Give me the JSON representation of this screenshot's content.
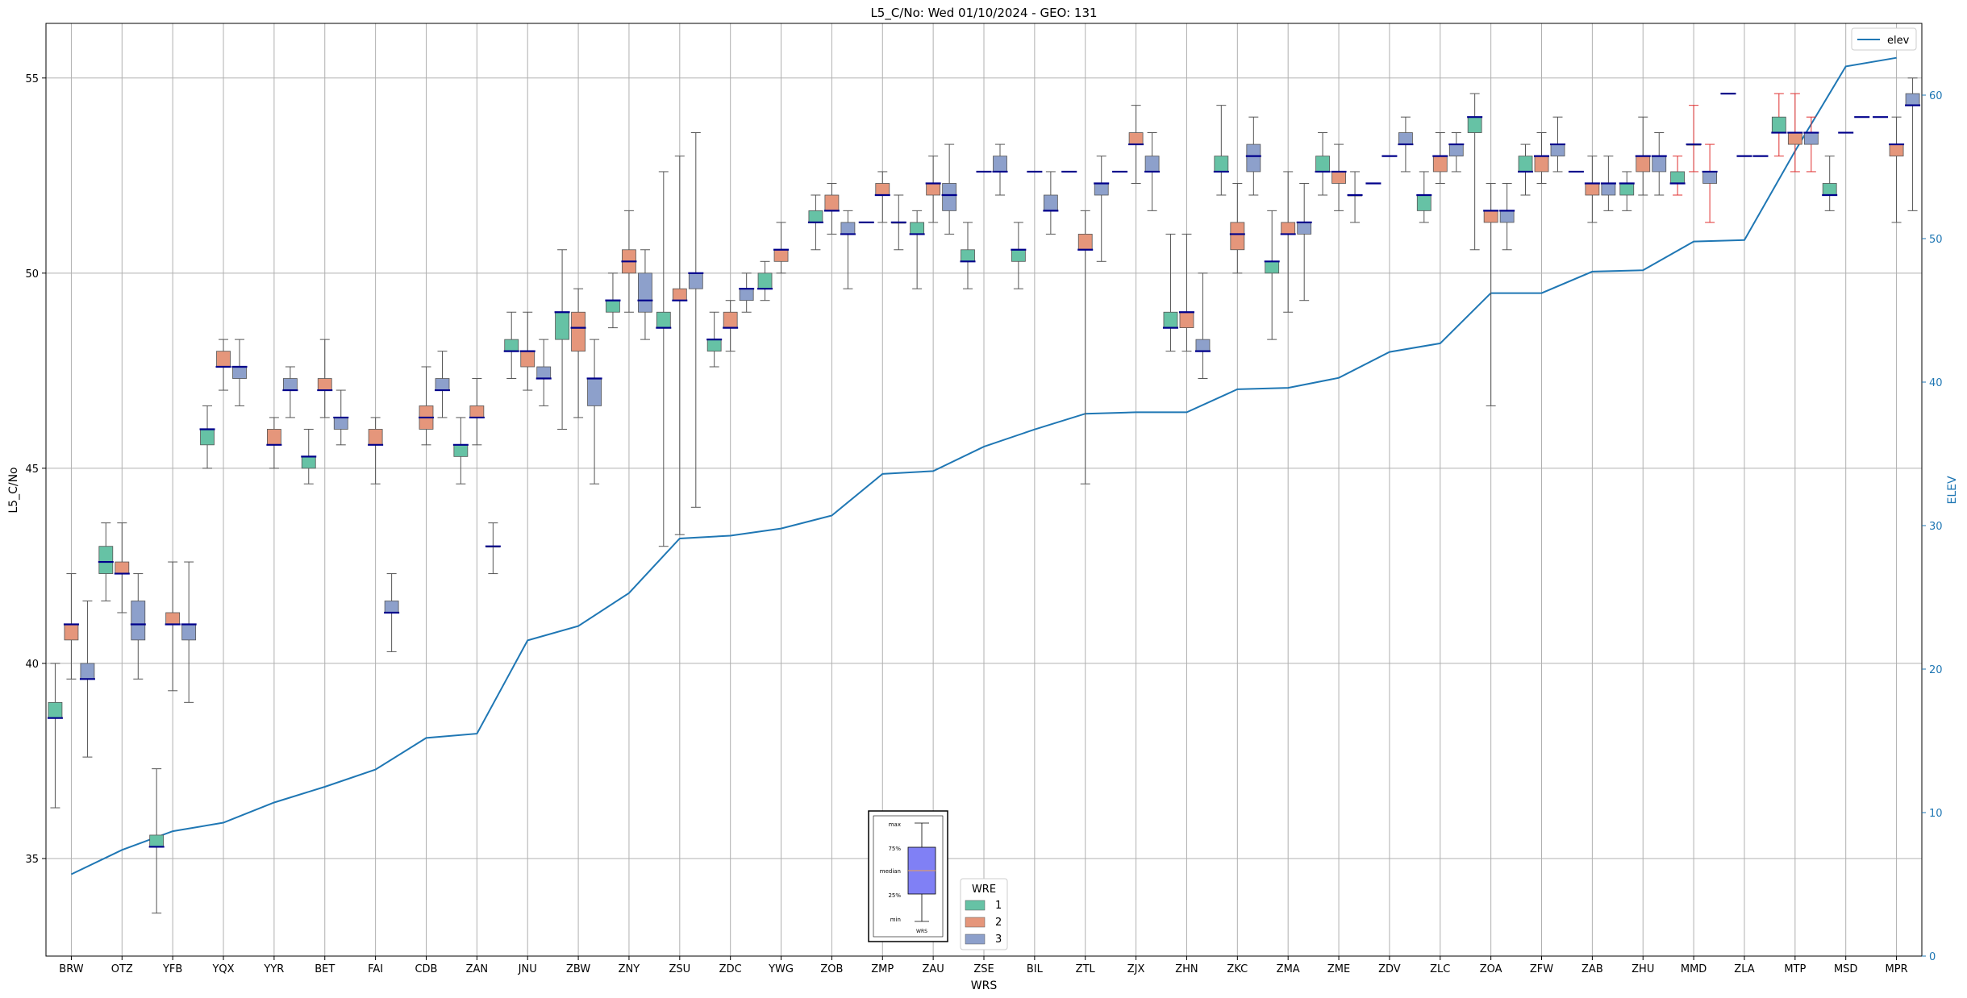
{
  "chart_data": {
    "type": "box",
    "title": "L5_C/No: Wed 01/10/2024 - GEO: 131",
    "xlabel": "WRS",
    "ylabel": "L5_C/No",
    "y2label": "ELEV",
    "ylim": [
      32.5,
      56.4
    ],
    "y2lim": [
      0,
      65
    ],
    "yticks": [
      35,
      40,
      45,
      50,
      55
    ],
    "y2ticks": [
      0,
      10,
      20,
      30,
      40,
      50,
      60
    ],
    "grid": true,
    "categories": [
      "BRW",
      "OTZ",
      "YFB",
      "YQX",
      "YYR",
      "BET",
      "FAI",
      "CDB",
      "ZAN",
      "JNU",
      "ZBW",
      "ZNY",
      "ZSU",
      "ZDC",
      "YWG",
      "ZOB",
      "ZMP",
      "ZAU",
      "ZSE",
      "BIL",
      "ZTL",
      "ZJX",
      "ZHN",
      "ZKC",
      "ZMA",
      "ZME",
      "ZDV",
      "ZLC",
      "ZOA",
      "ZFW",
      "ZAB",
      "ZHU",
      "MMD",
      "ZLA",
      "MTP",
      "MSD",
      "MPR"
    ],
    "series": [
      {
        "name": "1",
        "color": "#66c2a5",
        "boxes": [
          {
            "cat": "BRW",
            "min": 36.3,
            "q1": 38.6,
            "median": 38.6,
            "q3": 39.0,
            "max": 40.0
          },
          {
            "cat": "OTZ",
            "min": 41.6,
            "q1": 42.3,
            "median": 42.6,
            "q3": 43.0,
            "max": 43.6
          },
          {
            "cat": "YFB",
            "min": 33.6,
            "q1": 35.3,
            "median": 35.3,
            "q3": 35.6,
            "max": 37.3
          },
          {
            "cat": "YQX",
            "min": 45.0,
            "q1": 45.6,
            "median": 46.0,
            "q3": 46.0,
            "max": 46.6
          },
          {
            "cat": "BET",
            "min": 44.6,
            "q1": 45.0,
            "median": 45.3,
            "q3": 45.3,
            "max": 46.0
          },
          {
            "cat": "ZAN",
            "min": 44.6,
            "q1": 45.3,
            "median": 45.6,
            "q3": 45.6,
            "max": 46.3
          },
          {
            "cat": "JNU",
            "min": 47.3,
            "q1": 48.0,
            "median": 48.0,
            "q3": 48.3,
            "max": 49.0
          },
          {
            "cat": "ZBW",
            "min": 46.0,
            "q1": 48.3,
            "median": 49.0,
            "q3": 49.0,
            "max": 50.6
          },
          {
            "cat": "ZNY",
            "min": 48.6,
            "q1": 49.0,
            "median": 49.3,
            "q3": 49.3,
            "max": 50.0
          },
          {
            "cat": "ZSU",
            "min": 43.0,
            "q1": 48.6,
            "median": 48.6,
            "q3": 49.0,
            "max": 52.6
          },
          {
            "cat": "ZDC",
            "min": 47.6,
            "q1": 48.0,
            "median": 48.3,
            "q3": 48.3,
            "max": 49.0
          },
          {
            "cat": "YWG",
            "min": 49.3,
            "q1": 49.6,
            "median": 49.6,
            "q3": 50.0,
            "max": 50.3
          },
          {
            "cat": "ZOB",
            "min": 50.6,
            "q1": 51.3,
            "median": 51.3,
            "q3": 51.6,
            "max": 52.0
          },
          {
            "cat": "ZAU",
            "min": 49.6,
            "q1": 51.0,
            "median": 51.0,
            "q3": 51.3,
            "max": 51.6
          },
          {
            "cat": "ZSE",
            "min": 49.6,
            "q1": 50.3,
            "median": 50.3,
            "q3": 50.6,
            "max": 51.3
          },
          {
            "cat": "BIL",
            "min": 49.6,
            "q1": 50.3,
            "median": 50.6,
            "q3": 50.6,
            "max": 51.3
          },
          {
            "cat": "ZHN",
            "min": 48.0,
            "q1": 48.6,
            "median": 48.6,
            "q3": 49.0,
            "max": 51.0
          },
          {
            "cat": "ZKC",
            "min": 52.0,
            "q1": 52.6,
            "median": 52.6,
            "q3": 53.0,
            "max": 54.3
          },
          {
            "cat": "ZMA",
            "min": 48.3,
            "q1": 50.0,
            "median": 50.3,
            "q3": 50.3,
            "max": 51.6
          },
          {
            "cat": "ZME",
            "min": 52.0,
            "q1": 52.6,
            "median": 52.6,
            "q3": 53.0,
            "max": 53.6
          },
          {
            "cat": "ZLC",
            "min": 51.3,
            "q1": 51.6,
            "median": 52.0,
            "q3": 52.0,
            "max": 52.6
          },
          {
            "cat": "ZOA",
            "min": 50.6,
            "q1": 53.6,
            "median": 54.0,
            "q3": 54.0,
            "max": 54.6
          },
          {
            "cat": "ZFW",
            "min": 52.0,
            "q1": 52.6,
            "median": 52.6,
            "q3": 53.0,
            "max": 53.3
          },
          {
            "cat": "ZHU",
            "min": 51.6,
            "q1": 52.0,
            "median": 52.3,
            "q3": 52.3,
            "max": 52.6
          },
          {
            "cat": "MMD",
            "min": 52.0,
            "q1": 52.3,
            "median": 52.3,
            "q3": 52.6,
            "max": 53.0
          },
          {
            "cat": "MTP",
            "min": 53.0,
            "q1": 53.6,
            "median": 53.6,
            "q3": 54.0,
            "max": 54.6
          },
          {
            "cat": "MSD",
            "min": 51.6,
            "q1": 52.0,
            "median": 52.0,
            "q3": 52.3,
            "max": 53.0
          }
        ]
      },
      {
        "name": "2",
        "color": "#e5967b",
        "boxes": [
          {
            "cat": "BRW",
            "min": 39.6,
            "q1": 40.6,
            "median": 41.0,
            "q3": 41.0,
            "max": 42.3
          },
          {
            "cat": "OTZ",
            "min": 41.3,
            "q1": 42.3,
            "median": 42.3,
            "q3": 42.6,
            "max": 43.6
          },
          {
            "cat": "YFB",
            "min": 39.3,
            "q1": 41.0,
            "median": 41.0,
            "q3": 41.3,
            "max": 42.6
          },
          {
            "cat": "YQX",
            "min": 47.0,
            "q1": 47.6,
            "median": 47.6,
            "q3": 48.0,
            "max": 48.3
          },
          {
            "cat": "YYR",
            "min": 45.0,
            "q1": 45.6,
            "median": 45.6,
            "q3": 46.0,
            "max": 46.3
          },
          {
            "cat": "BET",
            "min": 46.3,
            "q1": 47.0,
            "median": 47.0,
            "q3": 47.3,
            "max": 48.3
          },
          {
            "cat": "FAI",
            "min": 44.6,
            "q1": 45.6,
            "median": 45.6,
            "q3": 46.0,
            "max": 46.3
          },
          {
            "cat": "CDB",
            "min": 45.6,
            "q1": 46.0,
            "median": 46.3,
            "q3": 46.6,
            "max": 47.6
          },
          {
            "cat": "ZAN",
            "min": 45.6,
            "q1": 46.3,
            "median": 46.3,
            "q3": 46.6,
            "max": 47.3
          },
          {
            "cat": "JNU",
            "min": 47.0,
            "q1": 47.6,
            "median": 48.0,
            "q3": 48.0,
            "max": 49.0
          },
          {
            "cat": "ZBW",
            "min": 46.3,
            "q1": 48.0,
            "median": 48.6,
            "q3": 49.0,
            "max": 49.6
          },
          {
            "cat": "ZNY",
            "min": 49.0,
            "q1": 50.0,
            "median": 50.3,
            "q3": 50.6,
            "max": 51.6
          },
          {
            "cat": "ZSU",
            "min": 43.3,
            "q1": 49.3,
            "median": 49.3,
            "q3": 49.6,
            "max": 53.0
          },
          {
            "cat": "ZDC",
            "min": 48.0,
            "q1": 48.6,
            "median": 48.6,
            "q3": 49.0,
            "max": 49.3
          },
          {
            "cat": "YWG",
            "min": 50.0,
            "q1": 50.3,
            "median": 50.6,
            "q3": 50.6,
            "max": 51.3
          },
          {
            "cat": "ZOB",
            "min": 51.0,
            "q1": 51.6,
            "median": 51.6,
            "q3": 52.0,
            "max": 52.3
          },
          {
            "cat": "ZMP",
            "min": 51.3,
            "q1": 52.0,
            "median": 52.0,
            "q3": 52.3,
            "max": 52.6
          },
          {
            "cat": "ZAU",
            "min": 51.3,
            "q1": 52.0,
            "median": 52.3,
            "q3": 52.3,
            "max": 53.0
          },
          {
            "cat": "ZTL",
            "min": 44.6,
            "q1": 50.6,
            "median": 50.6,
            "q3": 51.0,
            "max": 51.6
          },
          {
            "cat": "ZJX",
            "min": 52.3,
            "q1": 53.3,
            "median": 53.3,
            "q3": 53.6,
            "max": 54.3
          },
          {
            "cat": "ZHN",
            "min": 48.0,
            "q1": 48.6,
            "median": 49.0,
            "q3": 49.0,
            "max": 51.0
          },
          {
            "cat": "ZKC",
            "min": 50.0,
            "q1": 50.6,
            "median": 51.0,
            "q3": 51.3,
            "max": 52.3
          },
          {
            "cat": "ZMA",
            "min": 49.0,
            "q1": 51.0,
            "median": 51.0,
            "q3": 51.3,
            "max": 52.6
          },
          {
            "cat": "ZME",
            "min": 51.6,
            "q1": 52.3,
            "median": 52.6,
            "q3": 52.6,
            "max": 53.3
          },
          {
            "cat": "ZLC",
            "min": 52.3,
            "q1": 52.6,
            "median": 53.0,
            "q3": 53.0,
            "max": 53.6
          },
          {
            "cat": "ZOA",
            "min": 46.6,
            "q1": 51.3,
            "median": 51.6,
            "q3": 51.6,
            "max": 52.3
          },
          {
            "cat": "ZFW",
            "min": 52.3,
            "q1": 52.6,
            "median": 53.0,
            "q3": 53.0,
            "max": 53.6
          },
          {
            "cat": "ZAB",
            "min": 51.3,
            "q1": 52.0,
            "median": 52.3,
            "q3": 52.3,
            "max": 53.0
          },
          {
            "cat": "ZHU",
            "min": 52.0,
            "q1": 52.6,
            "median": 53.0,
            "q3": 53.0,
            "max": 54.0
          },
          {
            "cat": "MMD",
            "min": 52.6,
            "q1": 53.3,
            "median": 53.3,
            "q3": 53.3,
            "max": 54.3
          },
          {
            "cat": "MTP",
            "min": 52.6,
            "q1": 53.3,
            "median": 53.6,
            "q3": 53.6,
            "max": 54.6
          },
          {
            "cat": "MPR",
            "min": 51.3,
            "q1": 53.0,
            "median": 53.3,
            "q3": 53.3,
            "max": 54.0
          }
        ]
      },
      {
        "name": "3",
        "color": "#8da0cb",
        "boxes": [
          {
            "cat": "BRW",
            "min": 37.6,
            "q1": 39.6,
            "median": 39.6,
            "q3": 40.0,
            "max": 41.6
          },
          {
            "cat": "OTZ",
            "min": 39.6,
            "q1": 40.6,
            "median": 41.0,
            "q3": 41.6,
            "max": 42.3
          },
          {
            "cat": "YFB",
            "min": 39.0,
            "q1": 40.6,
            "median": 41.0,
            "q3": 41.0,
            "max": 42.6
          },
          {
            "cat": "YQX",
            "min": 46.6,
            "q1": 47.3,
            "median": 47.6,
            "q3": 47.6,
            "max": 48.3
          },
          {
            "cat": "YYR",
            "min": 46.3,
            "q1": 47.0,
            "median": 47.0,
            "q3": 47.3,
            "max": 47.6
          },
          {
            "cat": "BET",
            "min": 45.6,
            "q1": 46.0,
            "median": 46.3,
            "q3": 46.3,
            "max": 47.0
          },
          {
            "cat": "FAI",
            "min": 40.3,
            "q1": 41.3,
            "median": 41.3,
            "q3": 41.6,
            "max": 42.3
          },
          {
            "cat": "CDB",
            "min": 46.3,
            "q1": 47.0,
            "median": 47.0,
            "q3": 47.3,
            "max": 48.0
          },
          {
            "cat": "ZAN",
            "min": 42.3,
            "q1": 43.0,
            "median": 43.0,
            "q3": 43.0,
            "max": 43.6
          },
          {
            "cat": "JNU",
            "min": 46.6,
            "q1": 47.3,
            "median": 47.3,
            "q3": 47.6,
            "max": 48.3
          },
          {
            "cat": "ZBW",
            "min": 44.6,
            "q1": 46.6,
            "median": 47.3,
            "q3": 47.3,
            "max": 48.3
          },
          {
            "cat": "ZNY",
            "min": 48.3,
            "q1": 49.0,
            "median": 49.3,
            "q3": 50.0,
            "max": 50.6
          },
          {
            "cat": "ZSU",
            "min": 44.0,
            "q1": 49.6,
            "median": 50.0,
            "q3": 50.0,
            "max": 53.6
          },
          {
            "cat": "ZDC",
            "min": 49.0,
            "q1": 49.3,
            "median": 49.6,
            "q3": 49.6,
            "max": 50.0
          },
          {
            "cat": "ZOB",
            "min": 49.6,
            "q1": 51.0,
            "median": 51.0,
            "q3": 51.3,
            "max": 51.6
          },
          {
            "cat": "ZMP",
            "min": 50.6,
            "q1": 51.3,
            "median": 51.3,
            "q3": 51.3,
            "max": 52.0
          },
          {
            "cat": "ZAU",
            "min": 51.0,
            "q1": 51.6,
            "median": 52.0,
            "q3": 52.3,
            "max": 53.3
          },
          {
            "cat": "ZSE",
            "min": 52.0,
            "q1": 52.6,
            "median": 52.6,
            "q3": 53.0,
            "max": 53.3
          },
          {
            "cat": "BIL",
            "min": 51.0,
            "q1": 51.6,
            "median": 51.6,
            "q3": 52.0,
            "max": 52.6
          },
          {
            "cat": "ZTL",
            "min": 50.3,
            "q1": 52.0,
            "median": 52.3,
            "q3": 52.3,
            "max": 53.0
          },
          {
            "cat": "ZJX",
            "min": 51.6,
            "q1": 52.6,
            "median": 52.6,
            "q3": 53.0,
            "max": 53.6
          },
          {
            "cat": "ZHN",
            "min": 47.3,
            "q1": 48.0,
            "median": 48.0,
            "q3": 48.3,
            "max": 50.0
          },
          {
            "cat": "ZKC",
            "min": 52.0,
            "q1": 52.6,
            "median": 53.0,
            "q3": 53.3,
            "max": 54.0
          },
          {
            "cat": "ZMA",
            "min": 49.3,
            "q1": 51.0,
            "median": 51.3,
            "q3": 51.3,
            "max": 52.3
          },
          {
            "cat": "ZME",
            "min": 51.3,
            "q1": 52.0,
            "median": 52.0,
            "q3": 52.0,
            "max": 52.6
          },
          {
            "cat": "ZDV",
            "min": 52.6,
            "q1": 53.3,
            "median": 53.3,
            "q3": 53.6,
            "max": 54.0
          },
          {
            "cat": "ZLC",
            "min": 52.6,
            "q1": 53.0,
            "median": 53.3,
            "q3": 53.3,
            "max": 53.6
          },
          {
            "cat": "ZOA",
            "min": 50.6,
            "q1": 51.3,
            "median": 51.6,
            "q3": 51.6,
            "max": 52.3
          },
          {
            "cat": "ZFW",
            "min": 52.6,
            "q1": 53.0,
            "median": 53.3,
            "q3": 53.3,
            "max": 54.0
          },
          {
            "cat": "ZAB",
            "min": 51.6,
            "q1": 52.0,
            "median": 52.3,
            "q3": 52.3,
            "max": 53.0
          },
          {
            "cat": "ZHU",
            "min": 52.0,
            "q1": 52.6,
            "median": 53.0,
            "q3": 53.0,
            "max": 53.6
          },
          {
            "cat": "MMD",
            "min": 51.3,
            "q1": 52.3,
            "median": 52.6,
            "q3": 52.6,
            "max": 53.3
          },
          {
            "cat": "MTP",
            "min": 52.6,
            "q1": 53.3,
            "median": 53.6,
            "q3": 53.6,
            "max": 54.0
          },
          {
            "cat": "MPR",
            "min": 51.6,
            "q1": 54.3,
            "median": 54.3,
            "q3": 54.6,
            "max": 55.0
          }
        ]
      }
    ],
    "single_medians": [
      {
        "cat": "ZNY",
        "series": "1",
        "value": 49.3
      },
      {
        "cat": "ZMP",
        "series": "1",
        "value": 51.3
      },
      {
        "cat": "ZSE",
        "series": "2",
        "value": 52.6
      },
      {
        "cat": "BIL",
        "series": "2",
        "value": 52.6
      },
      {
        "cat": "ZTL",
        "series": "1",
        "value": 52.6
      },
      {
        "cat": "ZJX",
        "series": "1",
        "value": 52.6
      },
      {
        "cat": "ZDV",
        "series": "1",
        "value": 52.3
      },
      {
        "cat": "ZDV",
        "series": "2",
        "value": 53.0
      },
      {
        "cat": "ZAB",
        "series": "1",
        "value": 52.6
      },
      {
        "cat": "ZLA",
        "series": "1",
        "value": 54.6
      },
      {
        "cat": "ZLA",
        "series": "2",
        "value": 53.0
      },
      {
        "cat": "ZLA",
        "series": "3",
        "value": 53.0
      },
      {
        "cat": "MSD",
        "series": "2",
        "value": 53.6
      },
      {
        "cat": "MSD",
        "series": "3",
        "value": 54.0
      },
      {
        "cat": "MPR",
        "series": "1",
        "value": 54.0
      }
    ],
    "red_whisker_categories": [
      "MMD",
      "MTP"
    ],
    "elev_series": {
      "name": "elev",
      "color": "#1f77b4",
      "values": [
        5.7,
        7.4,
        8.7,
        9.3,
        10.7,
        11.8,
        13.0,
        15.2,
        15.5,
        22.0,
        23.0,
        25.3,
        29.1,
        29.3,
        29.8,
        30.7,
        33.6,
        33.8,
        35.5,
        36.7,
        37.8,
        37.9,
        37.9,
        39.5,
        39.6,
        40.3,
        42.1,
        42.7,
        46.2,
        46.2,
        47.7,
        47.8,
        49.8,
        49.9,
        56.1,
        62.0,
        62.6
      ]
    },
    "legend_main": {
      "title": "WRE",
      "entries": [
        "1",
        "2",
        "3"
      ],
      "position": "bottom-center"
    },
    "legend_elev": {
      "entries": [
        "elev"
      ],
      "position": "top-right"
    },
    "key_box": {
      "labels": [
        "max",
        "75%",
        "median",
        "25%",
        "min"
      ],
      "xlabel": "WRS"
    }
  }
}
